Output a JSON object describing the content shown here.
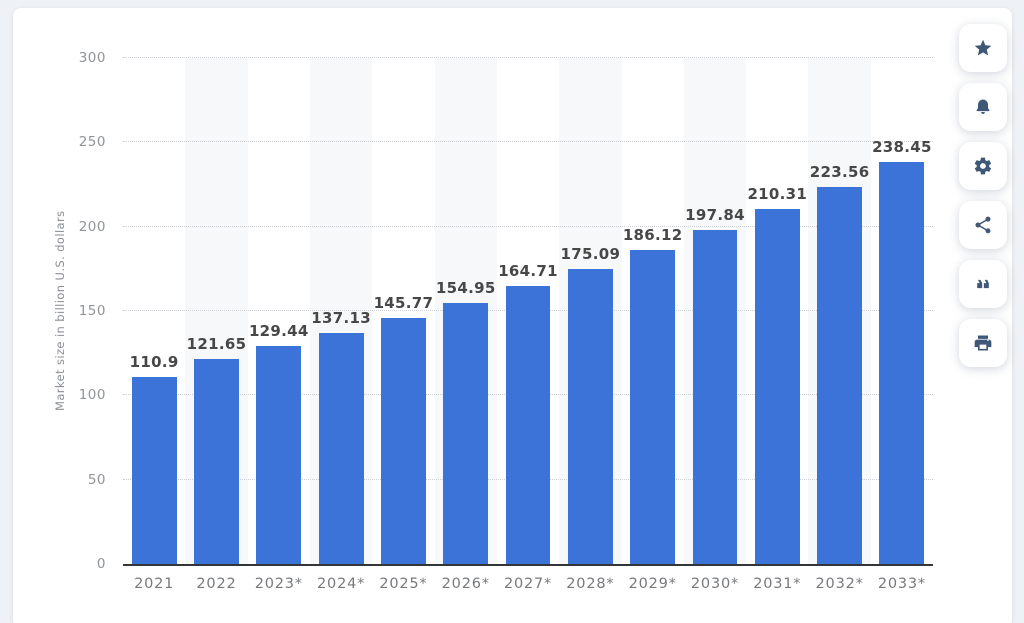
{
  "chart_data": {
    "type": "bar",
    "categories": [
      "2021",
      "2022",
      "2023*",
      "2024*",
      "2025*",
      "2026*",
      "2027*",
      "2028*",
      "2029*",
      "2030*",
      "2031*",
      "2032*",
      "2033*"
    ],
    "values": [
      110.9,
      121.65,
      129.44,
      137.13,
      145.77,
      154.95,
      164.71,
      175.09,
      186.12,
      197.84,
      210.31,
      223.56,
      238.45
    ],
    "value_labels": [
      "110.9",
      "121.65",
      "129.44",
      "137.13",
      "145.77",
      "154.95",
      "164.71",
      "175.09",
      "186.12",
      "197.84",
      "210.31",
      "223.56",
      "238.45"
    ],
    "title": "",
    "xlabel": "",
    "ylabel": "Market size in billion U.S. dollars",
    "ylim": [
      0,
      300
    ],
    "yticks": [
      0,
      50,
      100,
      150,
      200,
      250,
      300
    ],
    "grid": "horizontal-dotted",
    "legend": "none",
    "bar_color": "#3b73d8",
    "alternating_band_color": "#f7f8f9",
    "shaded_band_categories": [
      "2022",
      "2024*",
      "2026*",
      "2028*",
      "2030*",
      "2032*"
    ]
  },
  "sidebar": {
    "icon_color": "#3f5878",
    "buttons": [
      {
        "name": "favorite-button",
        "icon": "star-icon"
      },
      {
        "name": "notifications-button",
        "icon": "bell-icon"
      },
      {
        "name": "settings-button",
        "icon": "gear-icon"
      },
      {
        "name": "share-button",
        "icon": "share-icon"
      },
      {
        "name": "citation-button",
        "icon": "quote-icon"
      },
      {
        "name": "print-button",
        "icon": "printer-icon"
      }
    ]
  },
  "colors": {
    "page_background": "#eef1f5",
    "card_background": "#ffffff",
    "axis_line": "#333639",
    "gridline": "#cdd0d4",
    "value_label": "#474747",
    "x_tick": "#77797c",
    "y_tick": "#909498"
  }
}
